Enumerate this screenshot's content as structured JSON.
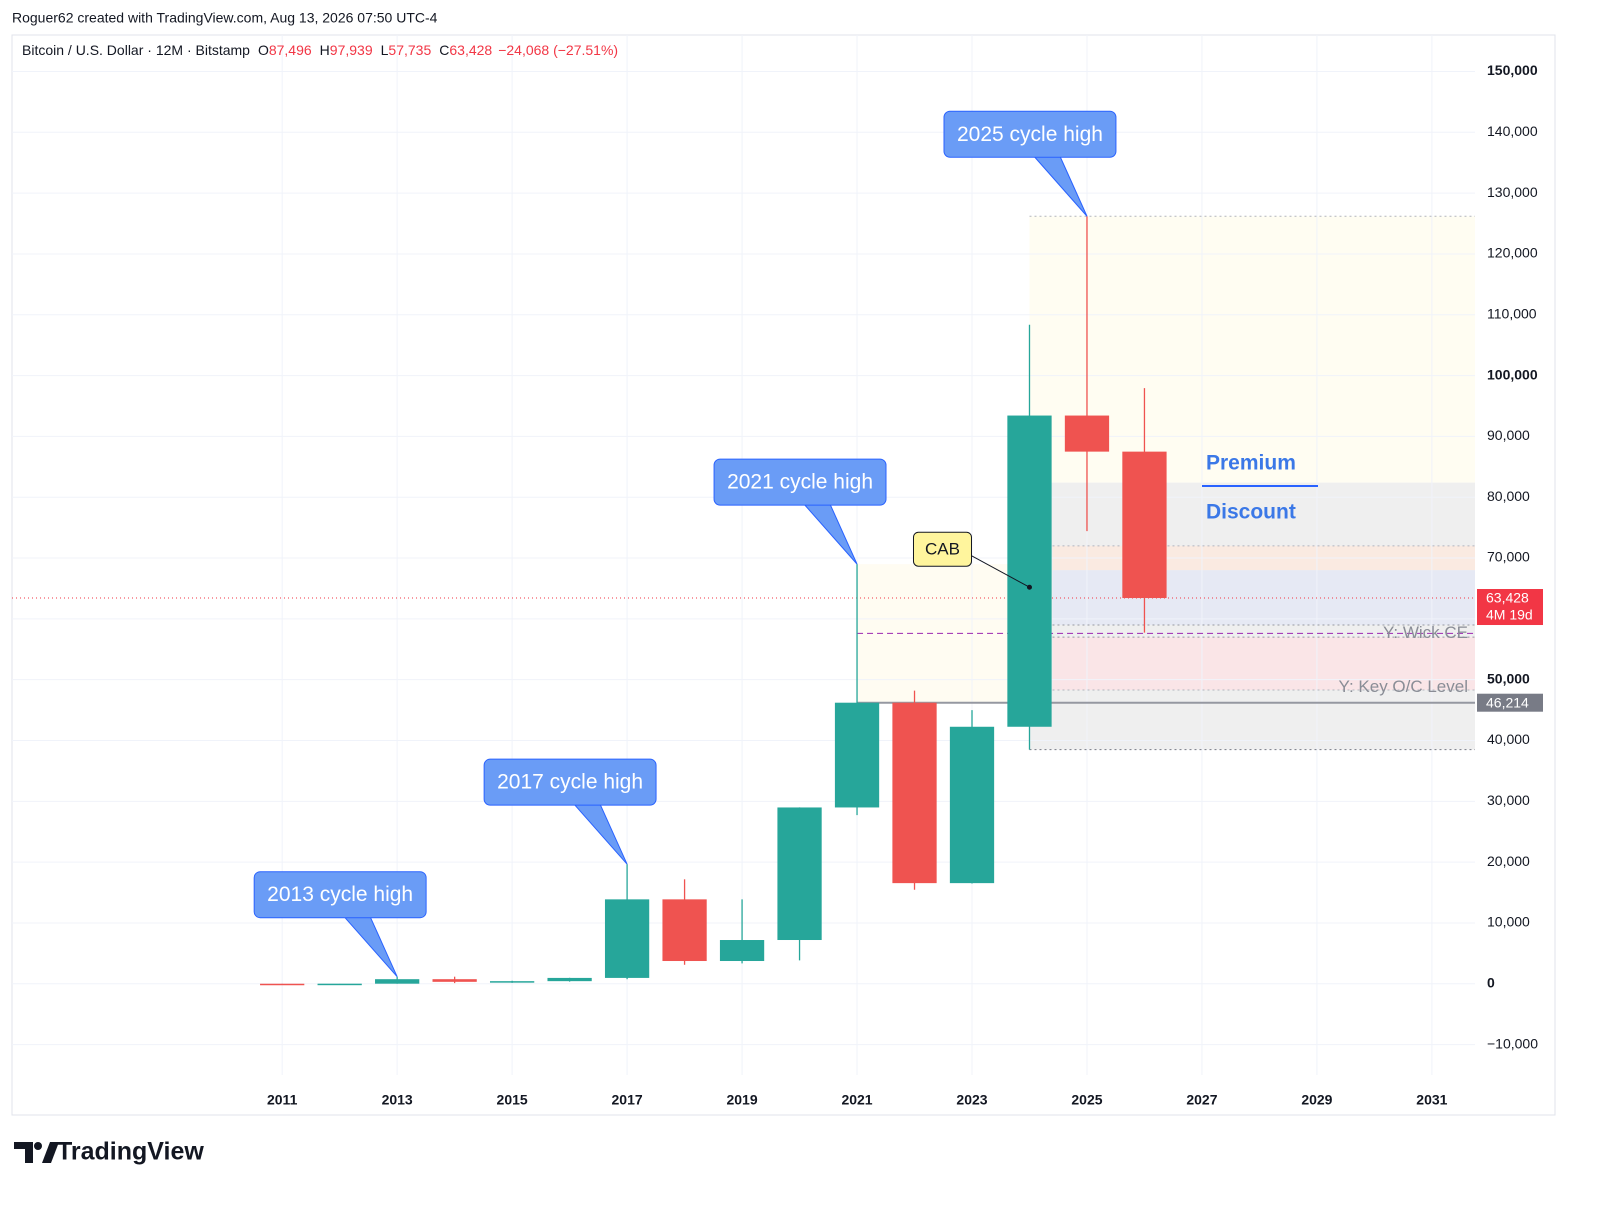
{
  "chart_data": {
    "type": "candlestick",
    "credit": "Roguer62 created with TradingView.com, Aug 13, 2026 07:50 UTC-4",
    "legend": {
      "title": "Bitcoin / U.S. Dollar · 12M · Bitstamp",
      "items": [
        {
          "key": "O",
          "value": 87496,
          "label": "87,496"
        },
        {
          "key": "H",
          "value": 97939,
          "label": "97,939"
        },
        {
          "key": "L",
          "value": 57735,
          "label": "57,735"
        },
        {
          "key": "C",
          "value": 63428,
          "label": "63,428"
        }
      ],
      "change": {
        "value": -24068,
        "label": "−24,068 (−27.51%)"
      }
    },
    "x": [
      2011,
      2012,
      2013,
      2014,
      2015,
      2016,
      2017,
      2018,
      2019,
      2020,
      2021,
      2022,
      2023,
      2024,
      2025,
      2026
    ],
    "open": [
      5,
      4.7,
      13.5,
      754,
      320,
      430,
      963,
      13880,
      3742,
      7195,
      28990,
      46214,
      16547,
      42258,
      93429,
      87496
    ],
    "high": [
      32,
      16,
      1163,
      1165,
      495,
      980,
      19666,
      17176,
      13880,
      29000,
      69000,
      48190,
      45000,
      108353,
      126200,
      97939
    ],
    "low": [
      2,
      4,
      12,
      111,
      152,
      350,
      752,
      3122,
      3350,
      3850,
      27734,
      15460,
      16490,
      38505,
      74420,
      57735
    ],
    "close": [
      4.5,
      13.5,
      754,
      320,
      430,
      963,
      13880,
      3742,
      7195,
      28990,
      46214,
      16547,
      42258,
      93429,
      87496,
      63428
    ],
    "up_color": "#26a69a",
    "down_color": "#ef5350",
    "xlim": [
      2006.3,
      2031.75
    ],
    "xticks": [
      2011,
      2013,
      2015,
      2017,
      2019,
      2021,
      2023,
      2025,
      2027,
      2029,
      2031
    ],
    "ylim": [
      -15000,
      156000
    ],
    "yticks": [
      {
        "value": -10000,
        "label": "−10,000"
      },
      0,
      {
        "value": 10000,
        "label": "10,000"
      },
      {
        "value": 20000,
        "label": "20,000"
      },
      {
        "value": 30000,
        "label": "30,000"
      },
      {
        "value": 40000,
        "label": "40,000"
      },
      {
        "value": 50000,
        "label": "50,000"
      },
      {
        "value": 60000,
        "label": "60,000"
      },
      {
        "value": 70000,
        "label": "70,000"
      },
      {
        "value": 80000,
        "label": "80,000"
      },
      {
        "value": 90000,
        "label": "90,000"
      },
      {
        "value": 100000,
        "label": "100,000"
      },
      {
        "value": 110000,
        "label": "110,000"
      },
      {
        "value": 120000,
        "label": "120,000"
      },
      {
        "value": 130000,
        "label": "130,000"
      },
      {
        "value": 140000,
        "label": "140,000"
      },
      {
        "value": 150000,
        "label": "150,000"
      }
    ],
    "grid": true,
    "zones": [
      {
        "xmin": 2021,
        "xmax": 2024,
        "ymin": 46214,
        "ymax": 69000,
        "color": "#fffbf0"
      },
      {
        "xmin": 2024,
        "xmax": 2031.75,
        "ymin": 82400,
        "ymax": 126200,
        "color": "#fffdf0"
      },
      {
        "xmin": 2024,
        "xmax": 2031.75,
        "ymin": 38500,
        "ymax": 82400,
        "color": "#ececec"
      },
      {
        "xmin": 2024.4,
        "xmax": 2031.75,
        "ymin": 68000,
        "ymax": 72000,
        "color": "#fbe9de"
      },
      {
        "xmin": 2024.4,
        "xmax": 2031.75,
        "ymin": 59000,
        "ymax": 68000,
        "color": "#e4e8f5"
      },
      {
        "xmin": 2024.4,
        "xmax": 2031.75,
        "ymin": 48300,
        "ymax": 57000,
        "color": "#fce3e5"
      }
    ],
    "levels": [
      {
        "value": 126200,
        "xmin": 2024,
        "color": "#b2b5be",
        "dash": "2,3"
      },
      {
        "value": 72000,
        "xmin": 2024.4,
        "color": "#b2b5be",
        "dash": "2,3"
      },
      {
        "value": 59000,
        "xmin": 2024.4,
        "color": "#9598a1",
        "dash": "2,3"
      },
      {
        "value": 57000,
        "xmin": 2024.4,
        "color": "#9598a1",
        "dash": "2,3"
      },
      {
        "value": 48300,
        "xmin": 2024.4,
        "color": "#b2b5be",
        "dash": "2,3"
      },
      {
        "value": 38500,
        "xmin": 2024,
        "color": "#787b86",
        "dash": "2,3"
      },
      {
        "value": 57607,
        "xmin": 2021,
        "color": "#9c27b0",
        "dash": "6,4",
        "label": "Y: Wick CE"
      },
      {
        "value": 46214,
        "xmin": 2021,
        "color": "#9598a1",
        "dash": "",
        "label": "Y: Key O/C Level"
      },
      {
        "value": 63428,
        "xmin": 2006.3,
        "color": "#f23645",
        "dash": "1,3"
      }
    ],
    "price_labels": [
      {
        "value": 63428,
        "label": "63,428",
        "sublabel": "4M 19d",
        "color": "#f23645"
      },
      {
        "value": 46214,
        "label": "46,214",
        "color": "#787b86"
      }
    ],
    "callouts": [
      {
        "text": "2013 cycle high",
        "x": 2013,
        "y": 1163
      },
      {
        "text": "2017 cycle high",
        "x": 2017,
        "y": 19666
      },
      {
        "text": "2021 cycle high",
        "x": 2021,
        "y": 69000
      },
      {
        "text": "2025 cycle high",
        "x": 2025,
        "y": 126200
      }
    ],
    "note": {
      "text": "CAB",
      "x": 2024,
      "y": 65200
    },
    "zone_labels": {
      "premium": "Premium",
      "discount": "Discount"
    },
    "brand": "TradingView"
  }
}
